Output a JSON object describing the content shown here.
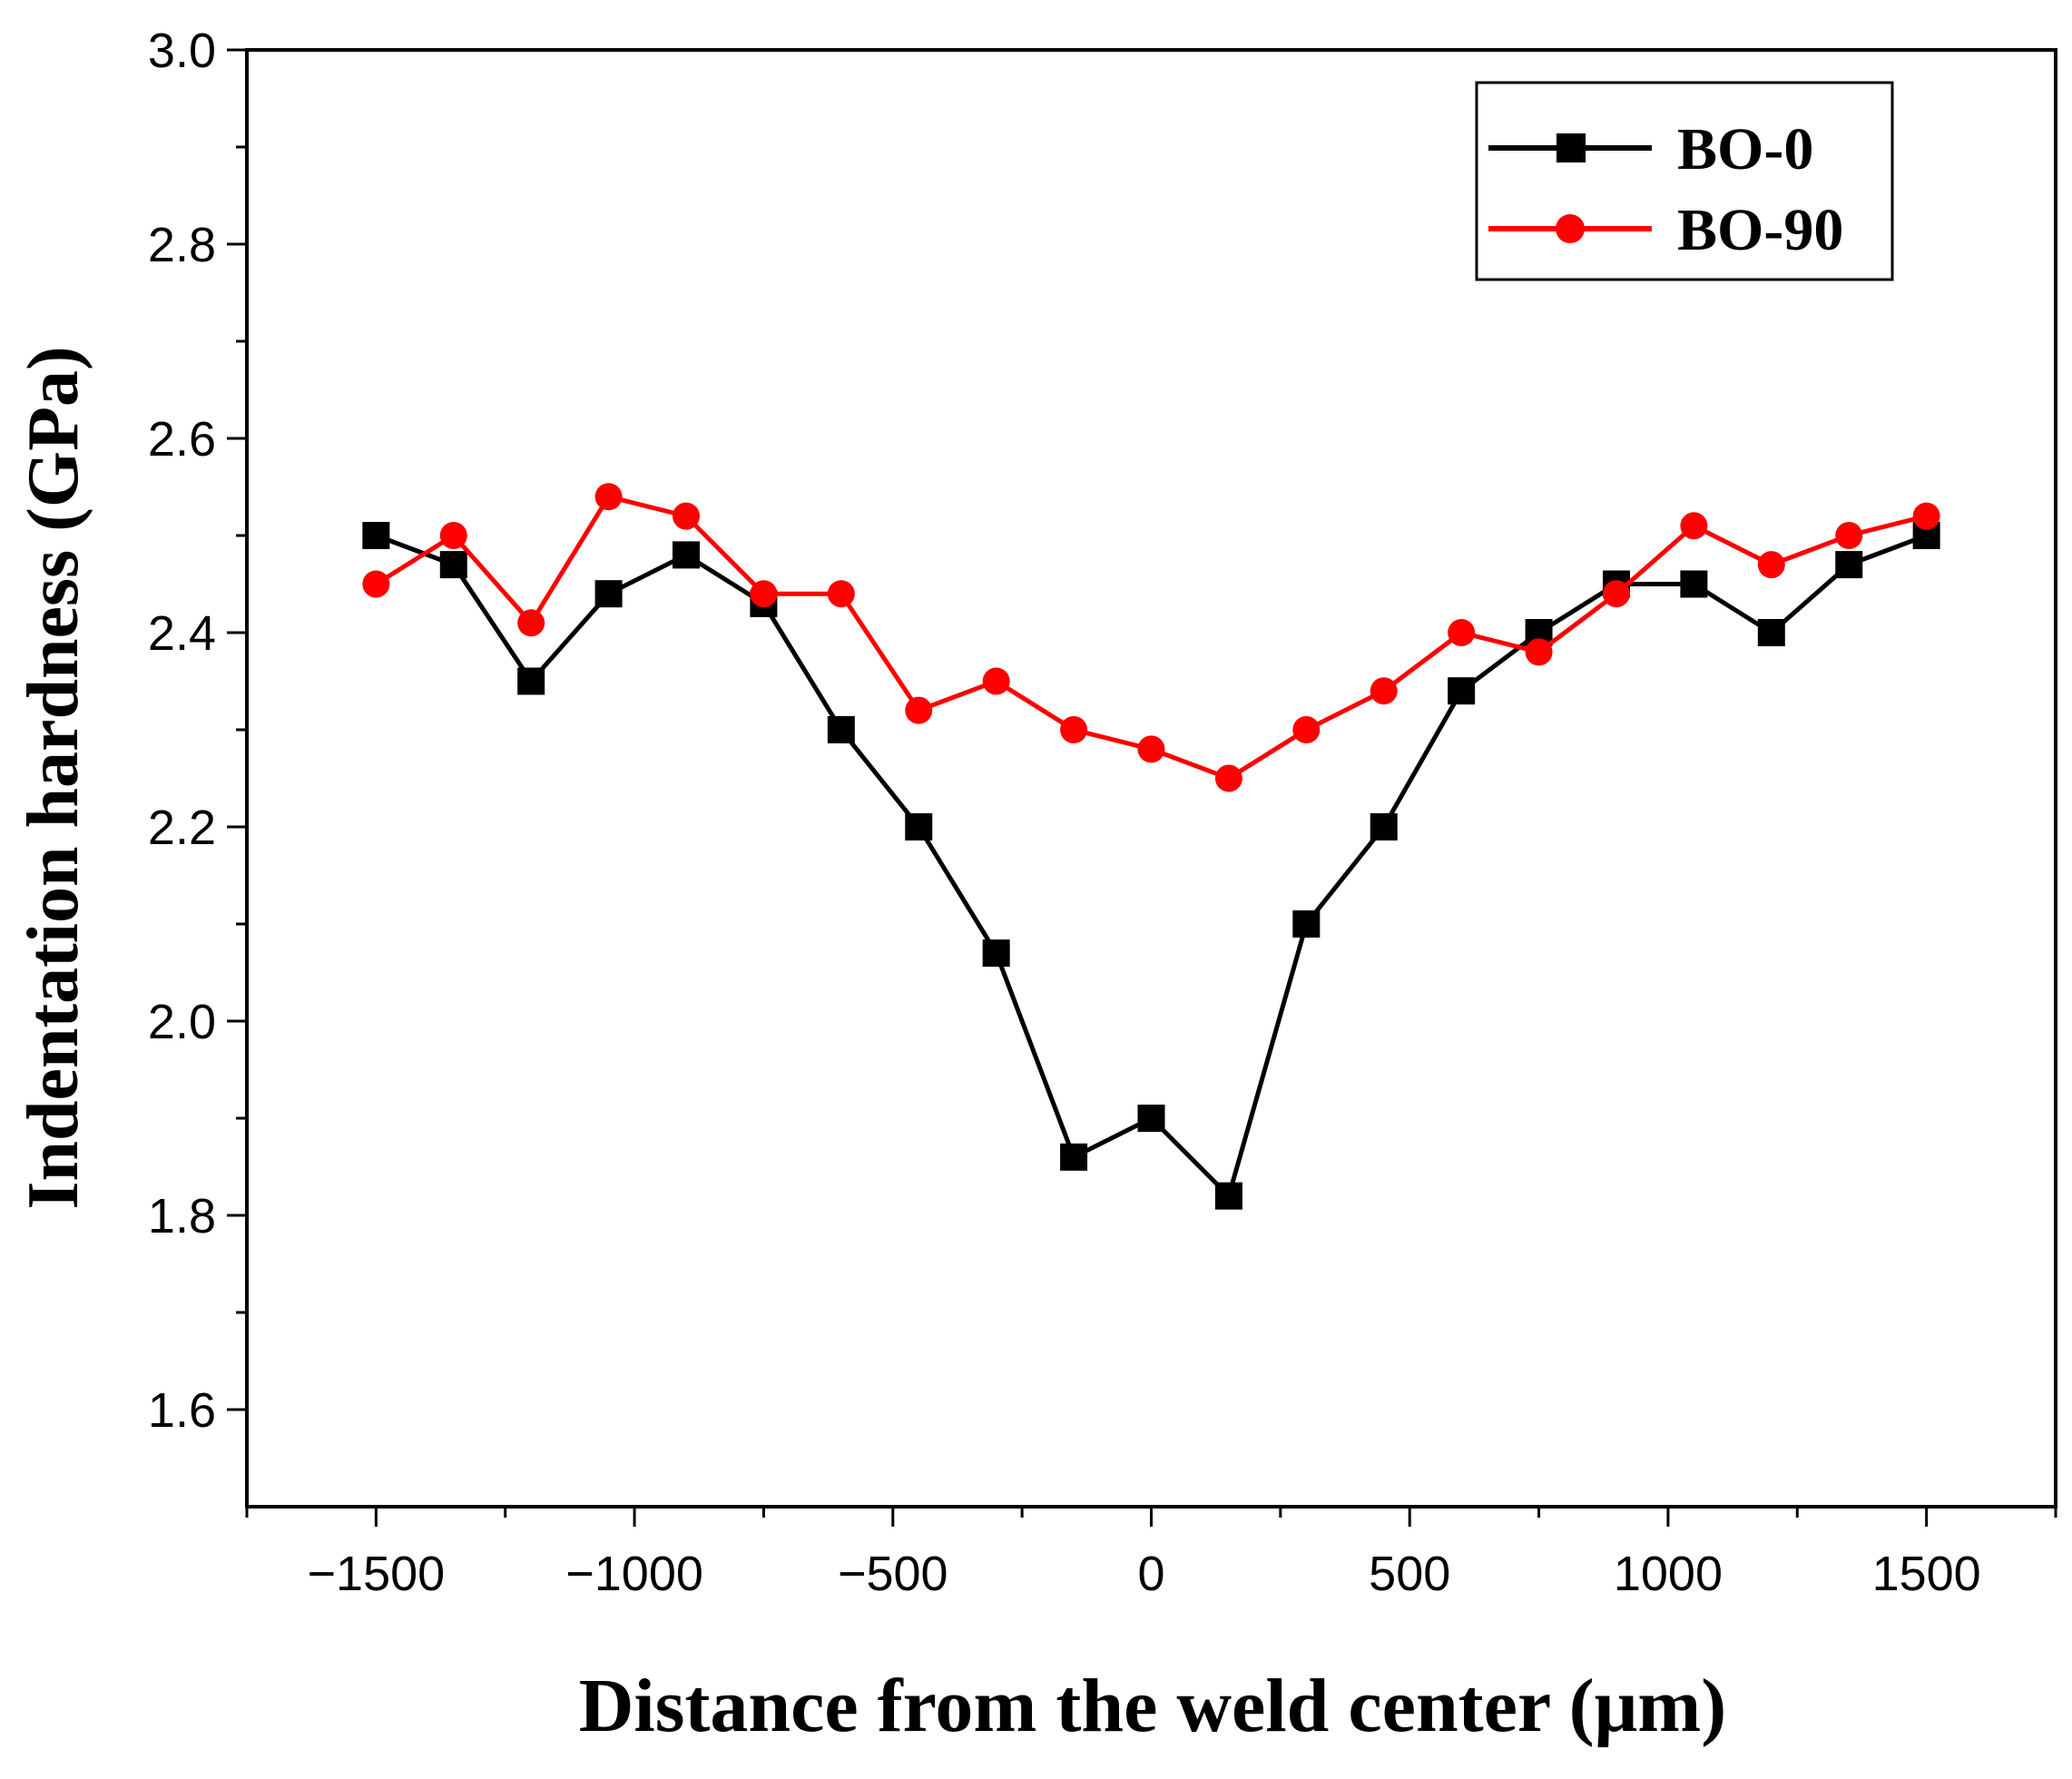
{
  "chart_data": {
    "type": "line",
    "title": "",
    "xlabel": "Distance from the weld center (μm)",
    "ylabel": "Indentation hardness (GPa)",
    "xlim": [
      -1750,
      1750
    ],
    "ylim": [
      1.5,
      3.0
    ],
    "x_major_ticks": [
      -1500,
      -1000,
      -500,
      0,
      500,
      1000,
      1500
    ],
    "x_tick_labels": [
      "−1500",
      "−1000",
      "−500",
      "0",
      "500",
      "1000",
      "1500"
    ],
    "y_major_ticks": [
      1.6,
      1.8,
      2.0,
      2.2,
      2.4,
      2.6,
      2.8,
      3.0
    ],
    "y_tick_labels": [
      "1.6",
      "1.8",
      "2.0",
      "2.2",
      "2.4",
      "2.6",
      "2.8",
      "3.0"
    ],
    "grid": false,
    "legend_position": "top-right",
    "x": [
      -1500,
      -1350,
      -1200,
      -1050,
      -900,
      -750,
      -600,
      -450,
      -300,
      -150,
      0,
      150,
      300,
      450,
      600,
      750,
      900,
      1050,
      1200,
      1350,
      1500
    ],
    "series": [
      {
        "name": "BO-0",
        "color": "#000000",
        "marker": "square",
        "values": [
          2.5,
          2.47,
          2.35,
          2.44,
          2.48,
          2.43,
          2.3,
          2.2,
          2.07,
          1.86,
          1.9,
          1.82,
          2.1,
          2.2,
          2.34,
          2.4,
          2.45,
          2.45,
          2.4,
          2.47,
          2.5
        ]
      },
      {
        "name": "BO-90",
        "color": "#ff0000",
        "marker": "circle",
        "values": [
          2.45,
          2.5,
          2.41,
          2.54,
          2.52,
          2.44,
          2.44,
          2.32,
          2.35,
          2.3,
          2.28,
          2.25,
          2.3,
          2.34,
          2.4,
          2.38,
          2.44,
          2.51,
          2.47,
          2.5,
          2.52
        ]
      }
    ]
  }
}
